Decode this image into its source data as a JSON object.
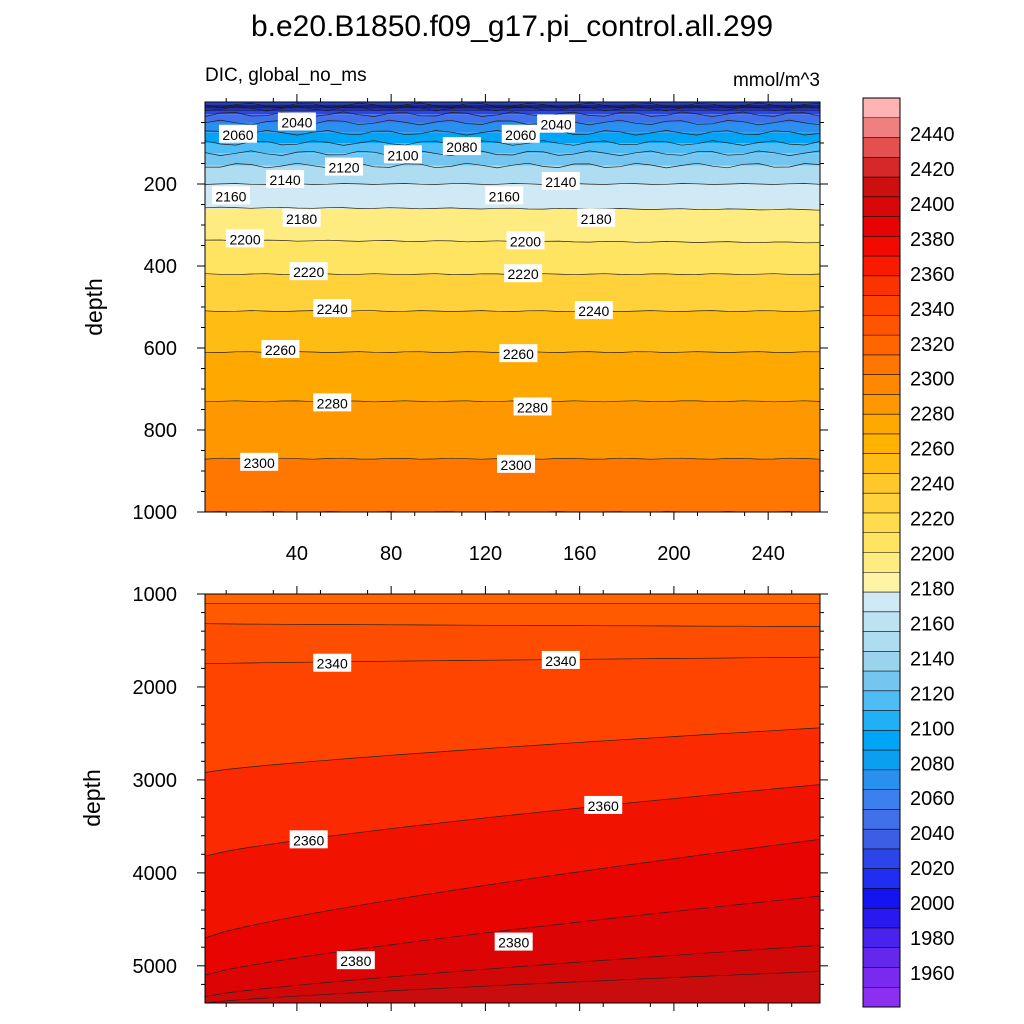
{
  "chart_data": {
    "type": "contour",
    "title": "b.e20.B1850.f09_g17.pi_control.all.299",
    "left_string": "DIC, global_no_ms",
    "right_string": "mmol/m^3",
    "ylabel": "depth",
    "x_ticks": [
      40,
      80,
      120,
      160,
      200,
      240
    ],
    "xlim": [
      1,
      262
    ],
    "panels": [
      {
        "name": "upper",
        "ylim": [
          0,
          1000
        ],
        "y_ticks": [
          200,
          400,
          600,
          800,
          1000
        ],
        "level_depths": [
          {
            "level": 2000,
            "depth": 8
          },
          {
            "level": 2020,
            "depth": 16
          },
          {
            "level": 2040,
            "depth": 30
          },
          {
            "level": 2060,
            "depth": 50
          },
          {
            "level": 2080,
            "depth": 75
          },
          {
            "level": 2100,
            "depth": 100
          },
          {
            "level": 2120,
            "depth": 125
          },
          {
            "level": 2140,
            "depth": 155
          },
          {
            "level": 2160,
            "depth": 200
          },
          {
            "level": 2180,
            "depth": 260
          },
          {
            "level": 2200,
            "depth": 340
          },
          {
            "level": 2220,
            "depth": 420
          },
          {
            "level": 2240,
            "depth": 510
          },
          {
            "level": 2260,
            "depth": 610
          },
          {
            "level": 2280,
            "depth": 730
          },
          {
            "level": 2300,
            "depth": 870
          },
          {
            "level": 2320,
            "depth": 1000
          }
        ],
        "contour_labels": [
          {
            "text": "2060",
            "x": 15,
            "depth": 80
          },
          {
            "text": "2040",
            "x": 40,
            "depth": 50
          },
          {
            "text": "2040",
            "x": 150,
            "depth": 55
          },
          {
            "text": "2060",
            "x": 135,
            "depth": 80
          },
          {
            "text": "2080",
            "x": 110,
            "depth": 110
          },
          {
            "text": "2100",
            "x": 85,
            "depth": 130
          },
          {
            "text": "2120",
            "x": 60,
            "depth": 160
          },
          {
            "text": "2140",
            "x": 35,
            "depth": 190
          },
          {
            "text": "2140",
            "x": 152,
            "depth": 195
          },
          {
            "text": "2160",
            "x": 12,
            "depth": 230
          },
          {
            "text": "2160",
            "x": 128,
            "depth": 230
          },
          {
            "text": "2180",
            "x": 42,
            "depth": 285
          },
          {
            "text": "2180",
            "x": 167,
            "depth": 285
          },
          {
            "text": "2200",
            "x": 18,
            "depth": 335
          },
          {
            "text": "2200",
            "x": 137,
            "depth": 340
          },
          {
            "text": "2220",
            "x": 45,
            "depth": 415
          },
          {
            "text": "2220",
            "x": 136,
            "depth": 420
          },
          {
            "text": "2240",
            "x": 55,
            "depth": 505
          },
          {
            "text": "2240",
            "x": 166,
            "depth": 510
          },
          {
            "text": "2260",
            "x": 33,
            "depth": 605
          },
          {
            "text": "2260",
            "x": 134,
            "depth": 615
          },
          {
            "text": "2280",
            "x": 55,
            "depth": 735
          },
          {
            "text": "2280",
            "x": 140,
            "depth": 745
          },
          {
            "text": "2300",
            "x": 24,
            "depth": 880
          },
          {
            "text": "2300",
            "x": 133,
            "depth": 885
          }
        ]
      },
      {
        "name": "lower",
        "ylim": [
          1000,
          5400
        ],
        "y_ticks": [
          1000,
          2000,
          3000,
          4000,
          5000
        ],
        "contour_labels": [
          {
            "text": "2340",
            "x": 55,
            "depth": 1750
          },
          {
            "text": "2340",
            "x": 152,
            "depth": 1720
          },
          {
            "text": "2360",
            "x": 45,
            "depth": 3650
          },
          {
            "text": "2360",
            "x": 170,
            "depth": 3280
          },
          {
            "text": "2380",
            "x": 65,
            "depth": 4950
          },
          {
            "text": "2380",
            "x": 132,
            "depth": 4750
          }
        ]
      }
    ],
    "colorbar": {
      "labels": [
        2440,
        2420,
        2400,
        2380,
        2360,
        2340,
        2320,
        2300,
        2280,
        2260,
        2240,
        2220,
        2200,
        2180,
        2160,
        2140,
        2120,
        2100,
        2080,
        2060,
        2040,
        2020,
        2000,
        1980,
        1960
      ],
      "colors_top_to_bottom": [
        "#ffb3b3",
        "#f07f7f",
        "#e45050",
        "#d62828",
        "#cc1010",
        "#d80808",
        "#e50303",
        "#f20a00",
        "#fa1a00",
        "#fb3300",
        "#ff4400",
        "#ff5500",
        "#ff6600",
        "#ff7700",
        "#ff8800",
        "#ff9800",
        "#ffa800",
        "#ffb300",
        "#ffbd14",
        "#ffc82a",
        "#ffd23c",
        "#ffdc4e",
        "#ffe462",
        "#ffec80",
        "#fff3a5",
        "#cfe9f5",
        "#bde3f3",
        "#aedcf0",
        "#9ad3ee",
        "#74c6f0",
        "#4ebcf5",
        "#1fb0f5",
        "#00a5f5",
        "#0b9ff2",
        "#2a90f0",
        "#3c80f0",
        "#4070ea",
        "#3c5ee6",
        "#2c45e8",
        "#1f2ef0",
        "#1414f0",
        "#2a18f0",
        "#4a22ee",
        "#6428ec",
        "#7a2aee",
        "#8b2ff0"
      ]
    }
  }
}
